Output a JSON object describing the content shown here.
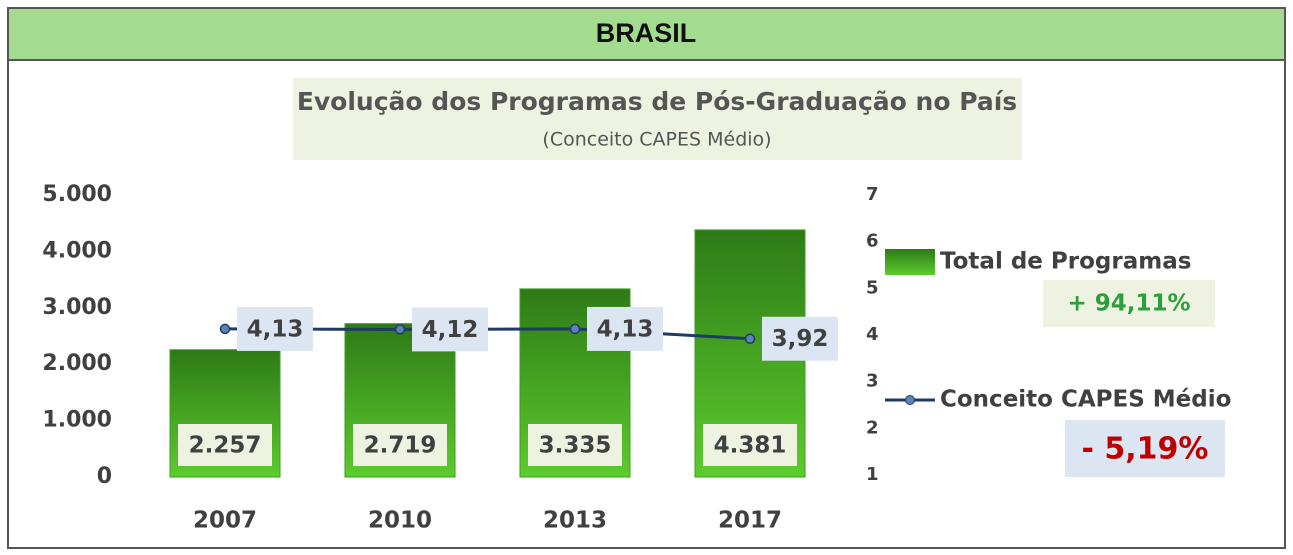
{
  "chart_data": {
    "type": "bar",
    "header": "BRASIL",
    "title": "Evolução dos Programas de Pós-Graduação no País",
    "subtitle": "(Conceito CAPES Médio)",
    "categories": [
      "2007",
      "2010",
      "2013",
      "2017"
    ],
    "series": [
      {
        "name": "Total de Programas",
        "color": "#3d9e1f",
        "values": [
          2257,
          2719,
          3335,
          4381
        ],
        "value_labels": [
          "2.257",
          "2.719",
          "3.335",
          "4.381"
        ]
      },
      {
        "name": "Conceito CAPES Médio",
        "type": "line",
        "axis": "y2",
        "color": "#1f3b63",
        "values": [
          4.13,
          4.12,
          4.13,
          3.92
        ],
        "value_labels": [
          "4,13",
          "4,12",
          "4,13",
          "3,92"
        ]
      }
    ],
    "annotations": [
      "+ 94,11%",
      "- 5,19%"
    ],
    "ylim": [
      0,
      5000
    ],
    "yticks": [
      0,
      {
        "value": 1000,
        "label": "1.000"
      },
      {
        "value": 2000,
        "label": "2.000"
      },
      {
        "value": 3000,
        "label": "3.000"
      },
      {
        "value": 4000,
        "label": "4.000"
      },
      {
        "value": 5000,
        "label": "5.000"
      }
    ],
    "y2lim": [
      1,
      7
    ],
    "y2ticks": [
      1,
      2,
      3,
      4,
      5,
      6,
      7
    ],
    "legend": "right"
  }
}
